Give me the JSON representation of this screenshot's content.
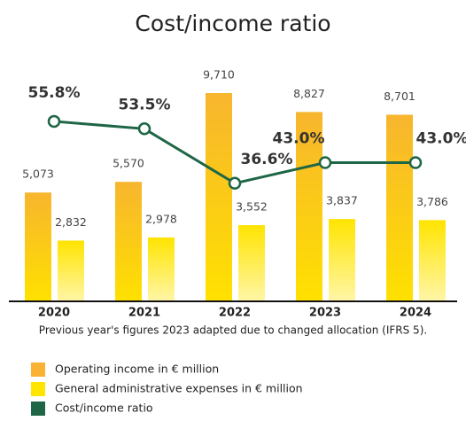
{
  "chart_data": {
    "type": "bar",
    "title": "Cost/income ratio",
    "note": "Previous year's figures 2023 adapted due to changed allocation (IFRS 5).",
    "categories": [
      "2020",
      "2021",
      "2022",
      "2023",
      "2024"
    ],
    "ylim": [
      0,
      10000
    ],
    "y2lim": [
      0,
      66.5
    ],
    "series": [
      {
        "name": "Operating income in € million",
        "color": "#f9b233",
        "values": [
          5073,
          5570,
          9710,
          8827,
          8701
        ],
        "value_labels": [
          "5,073",
          "5,570",
          "9,710",
          "8,827",
          "8,701"
        ]
      },
      {
        "name": "General administrative expenses in € million",
        "color": "#ffe500",
        "values": [
          2832,
          2978,
          3552,
          3837,
          3786
        ],
        "value_labels": [
          "2,832",
          "2,978",
          "3,552",
          "3,837",
          "3,786"
        ]
      },
      {
        "name": "Cost/income ratio",
        "type": "line",
        "axis": "y2",
        "color": "#1e6645",
        "values": [
          55.8,
          53.5,
          36.6,
          43.0,
          43.0
        ],
        "value_labels": [
          "55.8%",
          "53.5%",
          "36.6%",
          "43.0%",
          "43.0%"
        ]
      }
    ]
  }
}
